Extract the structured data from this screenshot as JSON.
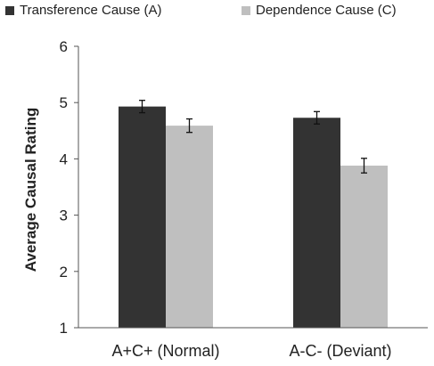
{
  "chart_data": {
    "type": "bar",
    "title": "",
    "xlabel": "",
    "ylabel": "Average Causal Rating",
    "ylim": [
      1,
      6
    ],
    "yticks": [
      1,
      2,
      3,
      4,
      5,
      6
    ],
    "categories": [
      "A+C+ (Normal)",
      "A-C- (Deviant)"
    ],
    "series": [
      {
        "name": "Transference Cause (A)",
        "color": "#333333",
        "values": [
          4.93,
          4.73
        ],
        "errors": [
          0.11,
          0.11
        ]
      },
      {
        "name": "Dependence Cause (C)",
        "color": "#bfbfbf",
        "values": [
          4.59,
          3.88
        ],
        "errors": [
          0.12,
          0.13
        ]
      }
    ],
    "grid": false,
    "legend_position": "top",
    "error_bars": true
  }
}
